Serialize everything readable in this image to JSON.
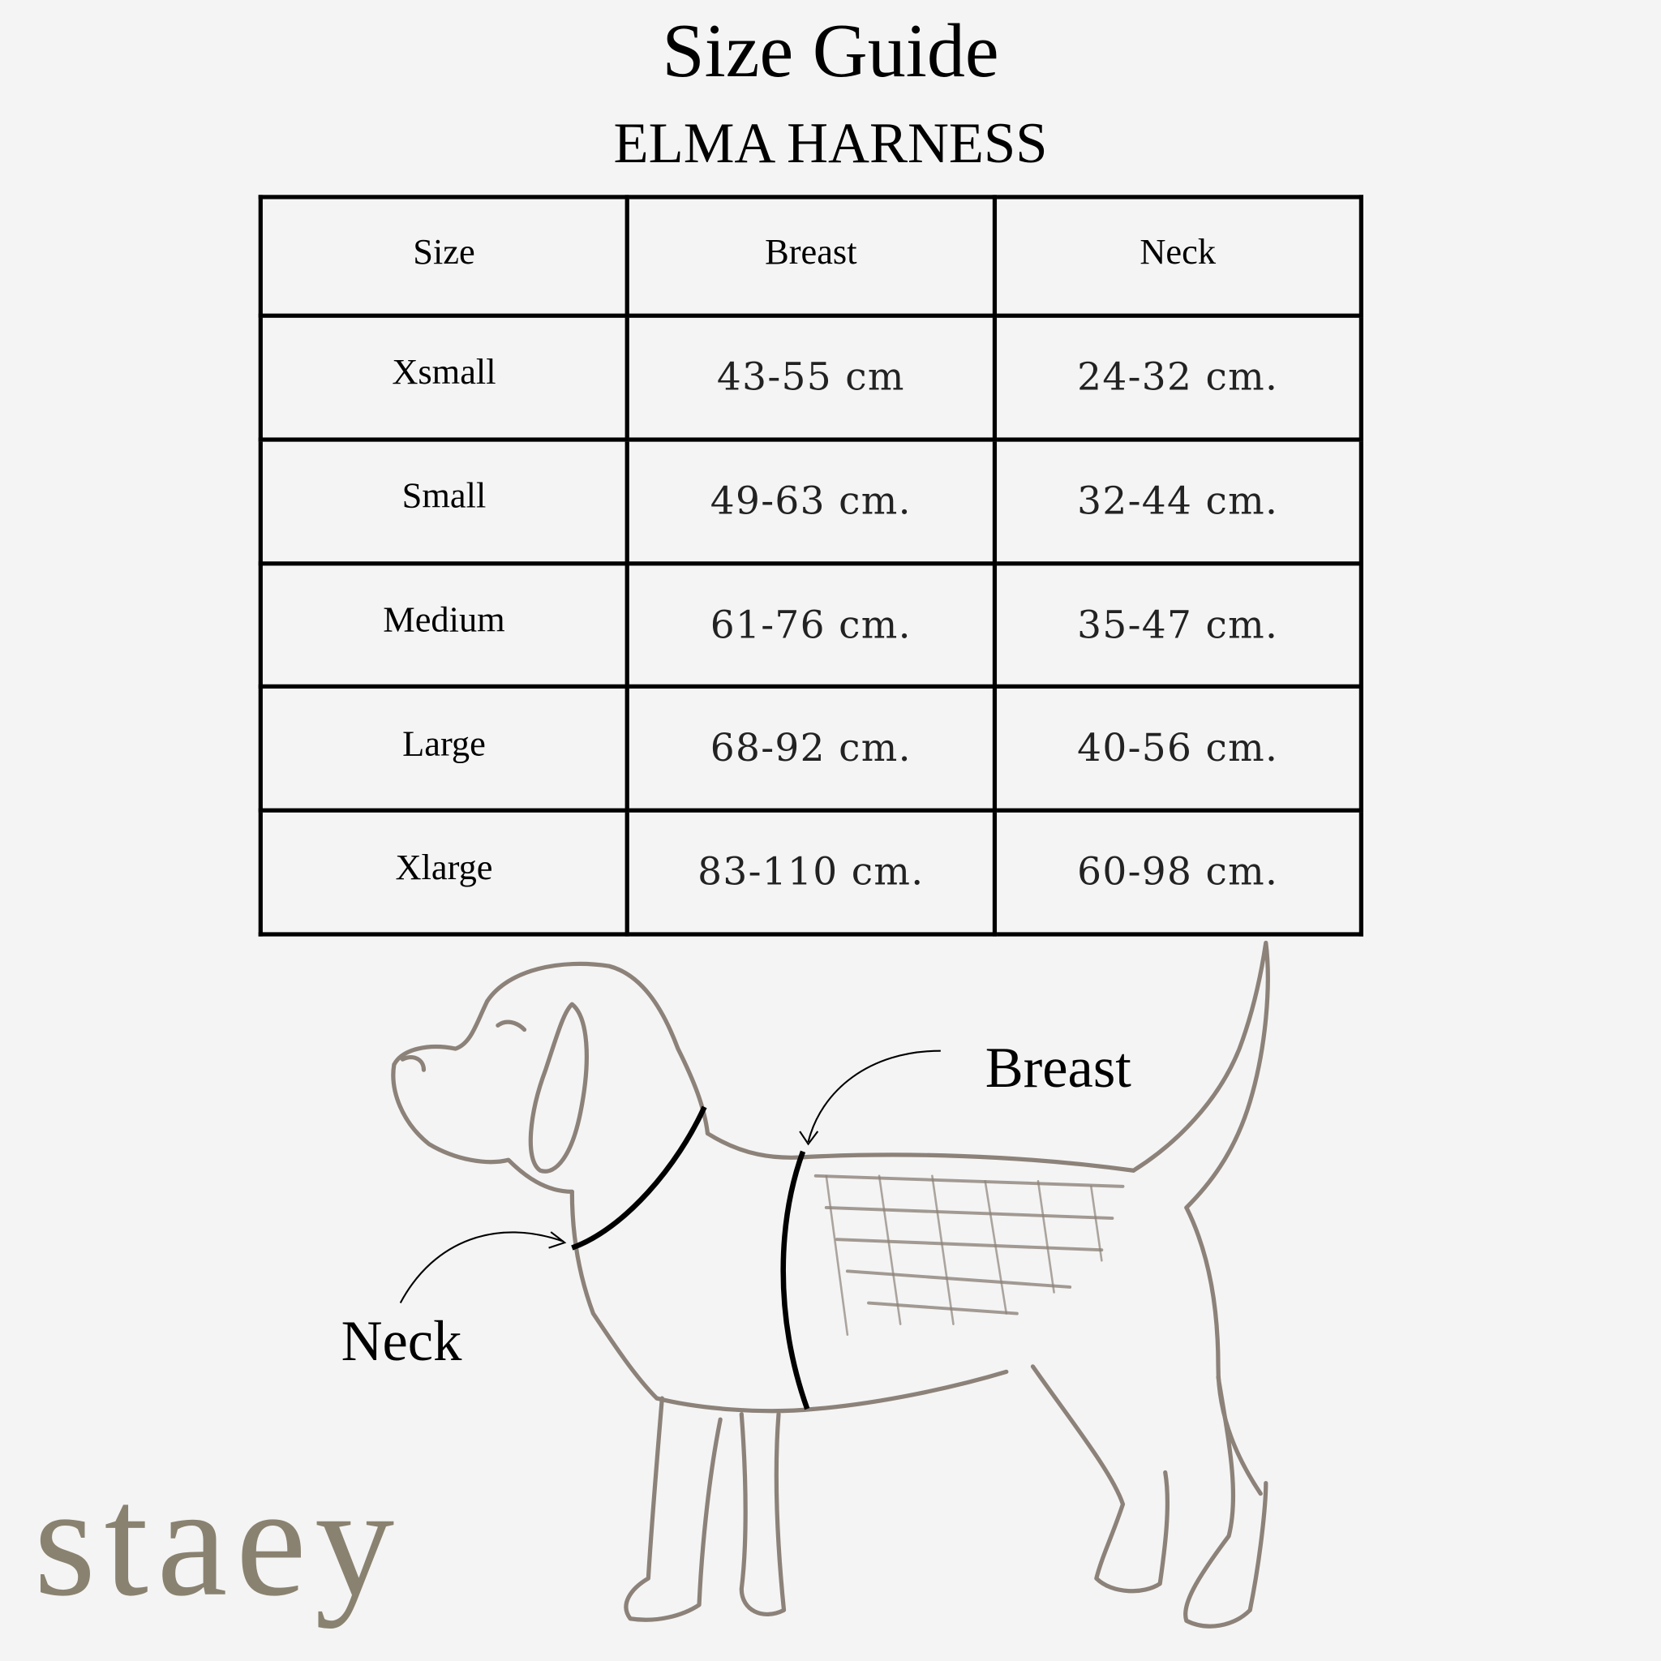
{
  "header": {
    "title": "Size Guide",
    "subtitle": "ELMA HARNESS"
  },
  "table": {
    "columns": [
      "Size",
      "Breast",
      "Neck"
    ],
    "rows": [
      {
        "size": "Xsmall",
        "breast": "43-55 cm",
        "neck": "24-32 cm."
      },
      {
        "size": "Small",
        "breast": "49-63 cm.",
        "neck": "32-44 cm."
      },
      {
        "size": "Medium",
        "breast": "61-76 cm.",
        "neck": "35-47 cm."
      },
      {
        "size": "Large",
        "breast": "68-92 cm.",
        "neck": "40-56 cm."
      },
      {
        "size": "Xlarge",
        "breast": "83-110 cm.",
        "neck": "60-98 cm."
      }
    ]
  },
  "illustration": {
    "breast_label": "Breast",
    "neck_label": "Neck",
    "sketch_color": "#8c8279"
  },
  "brand": {
    "logo_text": "staey",
    "color": "#8a8270"
  }
}
